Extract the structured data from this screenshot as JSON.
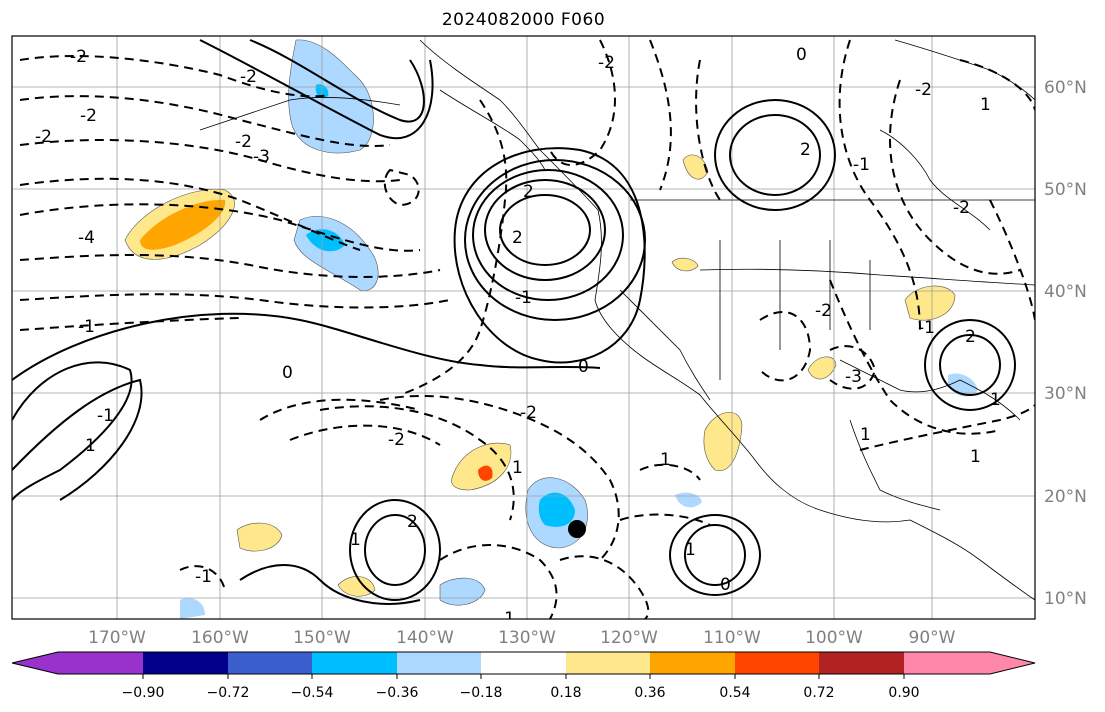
{
  "title": "2024082000 F060",
  "map": {
    "lon_labels": [
      "170°W",
      "160°W",
      "150°W",
      "140°W",
      "130°W",
      "120°W",
      "110°W",
      "100°W",
      "90°W"
    ],
    "lat_labels": [
      "60°N",
      "50°N",
      "40°N",
      "30°N",
      "20°N",
      "10°N"
    ],
    "contour_labels": [
      "-2",
      "-2",
      "-2",
      "-3",
      "-2",
      "-4",
      "-1",
      "0",
      "1",
      "-1",
      "2",
      "-1",
      "0",
      "-2",
      "-2",
      "2",
      "1",
      "1",
      "1",
      "-2",
      "-2",
      "-2",
      "2",
      "-3",
      "2",
      "1",
      "-2",
      "1",
      "1",
      "-1",
      "-1",
      "2",
      "0",
      "-1",
      "0",
      "-1",
      "1",
      "-2",
      "1"
    ]
  },
  "colorbar": {
    "ticks": [
      "−0.90",
      "−0.72",
      "−0.54",
      "−0.36",
      "−0.18",
      "0.18",
      "0.36",
      "0.54",
      "0.72",
      "0.90"
    ],
    "colors": [
      "#9932cc",
      "#00008b",
      "#3a5fcd",
      "#00bfff",
      "#add8ff",
      "#ffffff",
      "#ffe88c",
      "#ffa500",
      "#ff4500",
      "#b22222",
      "#ff88aa"
    ]
  },
  "marker": {
    "label": "storm-center"
  }
}
